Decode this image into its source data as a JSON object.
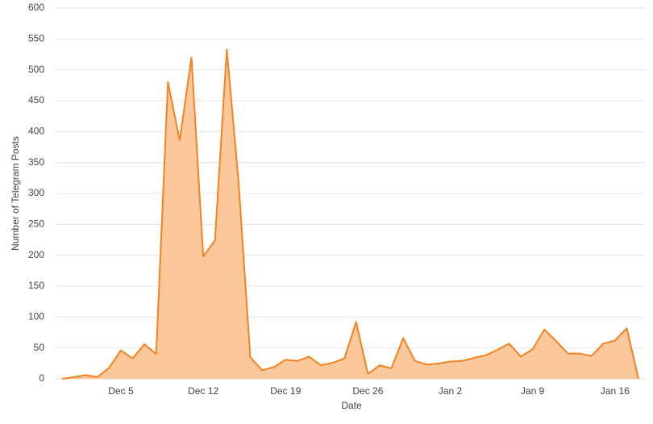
{
  "chart_data": {
    "type": "area",
    "x_label": "Date",
    "y_label": "Number of Telegram Posts",
    "categories": [
      null,
      null,
      null,
      null,
      null,
      "Dec 5",
      null,
      null,
      null,
      null,
      null,
      null,
      "Dec 12",
      null,
      null,
      null,
      null,
      null,
      null,
      "Dec 19",
      null,
      null,
      null,
      null,
      null,
      null,
      "Dec 26",
      null,
      null,
      null,
      null,
      null,
      null,
      "Jan 2",
      null,
      null,
      null,
      null,
      null,
      null,
      "Jan 9",
      null,
      null,
      null,
      null,
      null,
      null,
      "Jan 16",
      null,
      null
    ],
    "values": [
      0,
      3,
      6,
      3,
      18,
      46,
      33,
      56,
      40,
      480,
      386,
      520,
      198,
      224,
      533,
      320,
      35,
      14,
      19,
      31,
      29,
      36,
      22,
      26,
      33,
      92,
      8,
      22,
      17,
      66,
      29,
      23,
      25,
      28,
      29,
      34,
      38,
      47,
      57,
      36,
      48,
      80,
      61,
      41,
      41,
      37,
      57,
      62,
      82,
      0
    ],
    "color": "#f58220",
    "fill": "#fbc89c",
    "ylim": [
      0,
      600
    ],
    "yticks": [
      0,
      50,
      100,
      150,
      200,
      250,
      300,
      350,
      400,
      450,
      500,
      550,
      600
    ],
    "grid": true
  }
}
